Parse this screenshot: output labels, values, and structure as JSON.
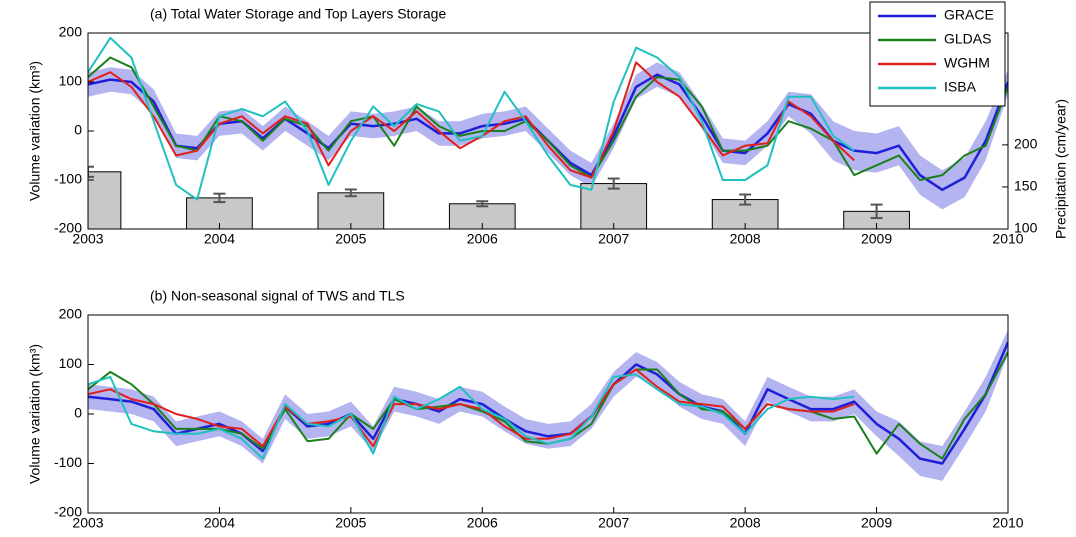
{
  "chart_data": [
    {
      "type": "line",
      "title": "(a) Total Water Storage and Top Layers Storage",
      "ylabel": "Volume variation (km³)",
      "y2label": "Precipitation (cm/year)",
      "x": [
        2003,
        2003.17,
        2003.33,
        2003.5,
        2003.67,
        2003.83,
        2004,
        2004.17,
        2004.33,
        2004.5,
        2004.67,
        2004.83,
        2005,
        2005.17,
        2005.33,
        2005.5,
        2005.67,
        2005.83,
        2006,
        2006.17,
        2006.33,
        2006.5,
        2006.67,
        2006.83,
        2007,
        2007.17,
        2007.33,
        2007.5,
        2007.67,
        2007.83,
        2008,
        2008.17,
        2008.33,
        2008.5,
        2008.67,
        2008.83,
        2009,
        2009.17,
        2009.33,
        2009.5,
        2009.67,
        2009.83,
        2010
      ],
      "xlim": [
        2003,
        2010
      ],
      "xticks": [
        2003,
        2004,
        2005,
        2006,
        2007,
        2008,
        2009,
        2010
      ],
      "ylim": [
        -200,
        200
      ],
      "yticks": [
        -200,
        -100,
        0,
        100,
        200
      ],
      "y2lim": [
        100,
        333
      ],
      "y2ticks": [
        100,
        150,
        200
      ],
      "legend": "upper right",
      "band_color": "#b4b4f0",
      "series": [
        {
          "name": "GRACE",
          "color": "#1f1fd8",
          "values": [
            95,
            105,
            100,
            60,
            -30,
            -35,
            15,
            20,
            -15,
            25,
            -5,
            -35,
            15,
            10,
            15,
            25,
            -5,
            -5,
            10,
            15,
            25,
            -20,
            -65,
            -90,
            -10,
            90,
            115,
            95,
            30,
            -40,
            -45,
            -5,
            55,
            35,
            -20,
            -40,
            -45,
            -30,
            -90,
            -120,
            -95,
            -20,
            100
          ],
          "errors": [
            25,
            25,
            25,
            25,
            25,
            25,
            25,
            25,
            25,
            25,
            25,
            25,
            25,
            25,
            25,
            25,
            25,
            25,
            25,
            25,
            25,
            25,
            25,
            25,
            25,
            25,
            25,
            25,
            25,
            25,
            25,
            25,
            25,
            40,
            40,
            40,
            40,
            40,
            40,
            40,
            40,
            40,
            25
          ]
        },
        {
          "name": "GLDAS",
          "color": "#1a801a",
          "values": [
            110,
            150,
            130,
            50,
            -30,
            -40,
            30,
            20,
            -20,
            25,
            10,
            -40,
            20,
            30,
            -30,
            50,
            10,
            -10,
            0,
            0,
            20,
            -20,
            -70,
            -95,
            -20,
            70,
            110,
            105,
            50,
            -40,
            -40,
            -30,
            20,
            5,
            -20,
            -90,
            -70,
            -50,
            -100,
            -90,
            -50,
            -30,
            90
          ]
        },
        {
          "name": "WGHM",
          "color": "#e0201a",
          "values": [
            100,
            120,
            90,
            30,
            -50,
            -40,
            15,
            30,
            -5,
            30,
            15,
            -70,
            0,
            30,
            0,
            40,
            0,
            -35,
            -10,
            20,
            30,
            -30,
            -80,
            -95,
            0,
            140,
            100,
            70,
            10,
            -50,
            -30,
            -25,
            60,
            30,
            -20,
            -60,
            null,
            null,
            null,
            null,
            null,
            null,
            null
          ]
        },
        {
          "name": "ISBA",
          "color": "#20c0c0",
          "values": [
            120,
            190,
            150,
            20,
            -110,
            -140,
            30,
            45,
            30,
            60,
            0,
            -110,
            -20,
            50,
            10,
            55,
            40,
            -20,
            -10,
            80,
            20,
            -50,
            -110,
            -120,
            60,
            170,
            150,
            110,
            20,
            -100,
            -100,
            -70,
            70,
            70,
            -10,
            -40,
            null,
            null,
            null,
            null,
            null,
            null,
            null
          ]
        }
      ],
      "bars": {
        "axis": "y2",
        "color": "#c8c8c8",
        "x": [
          2003,
          2004,
          2005,
          2006,
          2007,
          2008,
          2009
        ],
        "values": [
          168,
          137,
          143,
          130,
          154,
          135,
          121
        ],
        "errors": [
          6,
          5,
          4,
          3,
          6,
          6,
          8
        ]
      }
    },
    {
      "type": "line",
      "title": "(b) Non-seasonal signal of TWS and TLS",
      "ylabel": "Volume variation (km³)",
      "x": [
        2003,
        2003.17,
        2003.33,
        2003.5,
        2003.67,
        2003.83,
        2004,
        2004.17,
        2004.33,
        2004.5,
        2004.67,
        2004.83,
        2005,
        2005.17,
        2005.33,
        2005.5,
        2005.67,
        2005.83,
        2006,
        2006.17,
        2006.33,
        2006.5,
        2006.67,
        2006.83,
        2007,
        2007.17,
        2007.33,
        2007.5,
        2007.67,
        2007.83,
        2008,
        2008.17,
        2008.33,
        2008.5,
        2008.67,
        2008.83,
        2009,
        2009.17,
        2009.33,
        2009.5,
        2009.67,
        2009.83,
        2010
      ],
      "xlim": [
        2003,
        2010
      ],
      "xticks": [
        2003,
        2004,
        2005,
        2006,
        2007,
        2008,
        2009,
        2010
      ],
      "ylim": [
        -200,
        200
      ],
      "yticks": [
        -200,
        -100,
        0,
        100,
        200
      ],
      "band_color": "#b4b4f0",
      "series": [
        {
          "color": "#1f1fd8",
          "values": [
            35,
            30,
            25,
            10,
            -40,
            -30,
            -20,
            -40,
            -75,
            15,
            -25,
            -20,
            0,
            -50,
            30,
            20,
            5,
            30,
            20,
            -10,
            -35,
            -45,
            -40,
            -5,
            60,
            100,
            80,
            40,
            15,
            5,
            -40,
            50,
            30,
            10,
            10,
            25,
            -20,
            -50,
            -90,
            -100,
            -30,
            40,
            145
          ],
          "errors": [
            25,
            25,
            25,
            25,
            25,
            25,
            25,
            25,
            25,
            25,
            25,
            25,
            25,
            25,
            25,
            25,
            25,
            25,
            25,
            25,
            25,
            25,
            25,
            25,
            25,
            25,
            25,
            25,
            25,
            25,
            25,
            25,
            25,
            25,
            25,
            25,
            25,
            35,
            35,
            35,
            35,
            35,
            25
          ]
        },
        {
          "color": "#1a801a",
          "values": [
            50,
            85,
            60,
            20,
            -30,
            -30,
            -30,
            -40,
            -70,
            10,
            -55,
            -50,
            0,
            -30,
            30,
            10,
            15,
            20,
            5,
            -15,
            -55,
            -60,
            -50,
            -20,
            60,
            90,
            90,
            40,
            10,
            5,
            -30,
            20,
            10,
            5,
            -10,
            -5,
            -80,
            -20,
            -60,
            -90,
            -10,
            40,
            125
          ]
        },
        {
          "color": "#e0201a",
          "values": [
            40,
            50,
            30,
            20,
            0,
            -10,
            -25,
            -30,
            -65,
            15,
            -20,
            -15,
            -5,
            -65,
            20,
            20,
            10,
            20,
            10,
            -25,
            -50,
            -50,
            -40,
            -5,
            60,
            90,
            55,
            25,
            20,
            15,
            -30,
            20,
            10,
            5,
            5,
            20,
            null,
            null,
            null,
            null,
            null,
            null,
            null
          ]
        },
        {
          "color": "#20c0c0",
          "values": [
            60,
            75,
            -20,
            -35,
            -40,
            -40,
            -30,
            -50,
            -90,
            20,
            -20,
            -25,
            0,
            -80,
            35,
            10,
            30,
            55,
            10,
            -10,
            -45,
            -60,
            -50,
            -5,
            75,
            80,
            50,
            20,
            15,
            0,
            -40,
            10,
            30,
            35,
            30,
            35,
            null,
            null,
            null,
            null,
            null,
            null,
            null
          ]
        }
      ]
    }
  ]
}
